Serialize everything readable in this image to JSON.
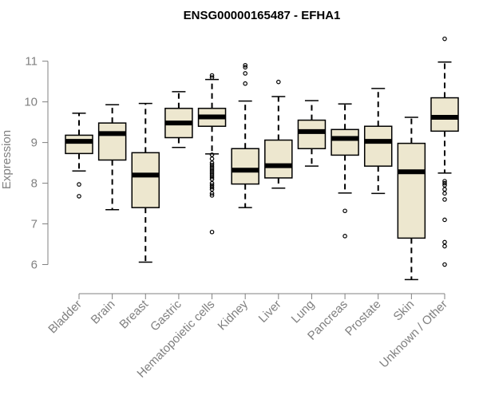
{
  "chart_data": {
    "type": "boxplot",
    "title": "ENSG00000165487 - EFHA1",
    "ylabel": "Expression",
    "xlabel": "",
    "ylim": [
      5.5,
      11.7
    ],
    "yticks": [
      6,
      7,
      8,
      9,
      10,
      11
    ],
    "box_fill": "#EDE7CF",
    "box_stroke": "#000000",
    "axis_color": "#808080",
    "categories": [
      "Bladder",
      "Brain",
      "Breast",
      "Gastric",
      "Hematopoietic cells",
      "Kidney",
      "Liver",
      "Lung",
      "Pancreas",
      "Prostate",
      "Skin",
      "Unknown / Other"
    ],
    "boxes": [
      {
        "q1": 8.73,
        "median": 9.03,
        "q3": 9.18,
        "whisker_low": 8.3,
        "whisker_high": 9.72,
        "outliers": [
          7.97,
          7.68
        ]
      },
      {
        "q1": 8.57,
        "median": 9.22,
        "q3": 9.48,
        "whisker_low": 7.35,
        "whisker_high": 9.93,
        "outliers": []
      },
      {
        "q1": 7.4,
        "median": 8.2,
        "q3": 8.75,
        "whisker_low": 6.06,
        "whisker_high": 9.96,
        "outliers": []
      },
      {
        "q1": 9.12,
        "median": 9.48,
        "q3": 9.84,
        "whisker_low": 8.88,
        "whisker_high": 10.25,
        "outliers": []
      },
      {
        "q1": 9.4,
        "median": 9.63,
        "q3": 9.84,
        "whisker_low": 8.72,
        "whisker_high": 10.55,
        "outliers": [
          10.65,
          10.6,
          8.7,
          8.6,
          8.5,
          8.45,
          8.4,
          8.35,
          8.3,
          8.25,
          8.2,
          8.15,
          8.1,
          8.0,
          7.95,
          7.9,
          7.85,
          7.75,
          7.7,
          6.8
        ]
      },
      {
        "q1": 7.98,
        "median": 8.32,
        "q3": 8.85,
        "whisker_low": 7.4,
        "whisker_high": 10.02,
        "outliers": [
          10.9,
          10.85,
          10.7,
          10.45
        ]
      },
      {
        "q1": 8.13,
        "median": 8.43,
        "q3": 9.06,
        "whisker_low": 7.88,
        "whisker_high": 10.13,
        "outliers": [
          10.49
        ]
      },
      {
        "q1": 8.85,
        "median": 9.27,
        "q3": 9.55,
        "whisker_low": 8.42,
        "whisker_high": 10.03,
        "outliers": []
      },
      {
        "q1": 8.69,
        "median": 9.1,
        "q3": 9.32,
        "whisker_low": 7.76,
        "whisker_high": 9.95,
        "outliers": [
          7.32,
          6.7
        ]
      },
      {
        "q1": 8.42,
        "median": 9.03,
        "q3": 9.4,
        "whisker_low": 7.75,
        "whisker_high": 10.33,
        "outliers": []
      },
      {
        "q1": 6.65,
        "median": 8.28,
        "q3": 8.98,
        "whisker_low": 5.63,
        "whisker_high": 9.62,
        "outliers": []
      },
      {
        "q1": 9.28,
        "median": 9.62,
        "q3": 10.1,
        "whisker_low": 8.25,
        "whisker_high": 10.98,
        "outliers": [
          11.55,
          8.05,
          8.0,
          7.95,
          7.85,
          7.75,
          7.6,
          7.1,
          6.55,
          6.45,
          6.0
        ]
      }
    ]
  }
}
